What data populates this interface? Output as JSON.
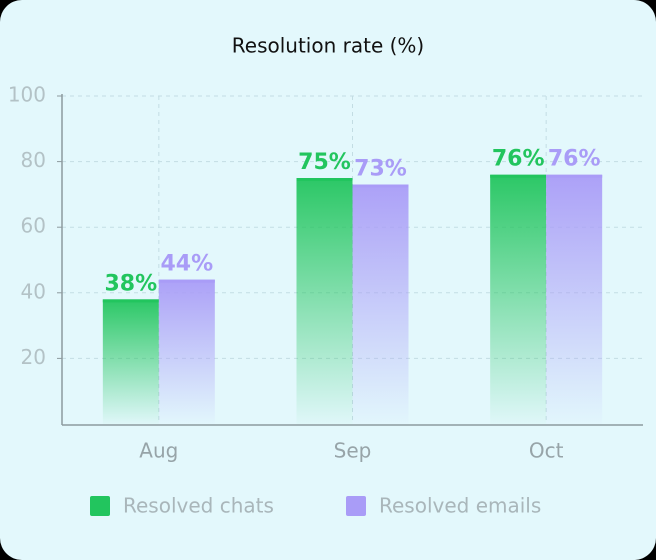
{
  "chart_data": {
    "type": "bar",
    "title": "Resolution rate (%)",
    "categories": [
      "Aug",
      "Sep",
      "Oct"
    ],
    "series": [
      {
        "name": "Resolved chats",
        "color": "#22c55e",
        "values": [
          38,
          75,
          76
        ],
        "value_labels": [
          "38%",
          "75%",
          "76%"
        ]
      },
      {
        "name": "Resolved emails",
        "color": "#a99cf7",
        "values": [
          44,
          73,
          76
        ],
        "value_labels": [
          "44%",
          "73%",
          "76%"
        ]
      }
    ],
    "ylim": [
      0,
      100
    ],
    "yticks": [
      20,
      40,
      60,
      80,
      100
    ],
    "grid": true,
    "legend": "bottom"
  }
}
